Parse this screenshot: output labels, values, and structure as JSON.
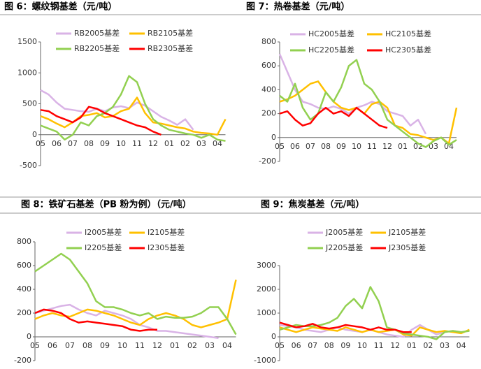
{
  "chart_data": [
    {
      "type": "line",
      "title": "图 6：螺纹钢基差（元/吨）",
      "categories": [
        "05",
        null,
        "06",
        null,
        "07",
        null,
        "08",
        null,
        "09",
        null,
        "10",
        null,
        "11",
        null,
        "12",
        null,
        "01",
        null,
        "02",
        null,
        "03",
        null,
        "04",
        null
      ],
      "ylim": [
        -500,
        1500
      ],
      "yticks": [
        -500,
        0,
        500,
        1000,
        1500
      ],
      "series": [
        {
          "name": "RB2005基差",
          "color": "#d9b3e6",
          "values": [
            720,
            650,
            520,
            420,
            400,
            380,
            370,
            420,
            380,
            440,
            460,
            430,
            520,
            470,
            380,
            290,
            230,
            160,
            250,
            80,
            null,
            null,
            null,
            null
          ]
        },
        {
          "name": "RB2105基差",
          "color": "#ffc000",
          "values": [
            300,
            250,
            180,
            120,
            200,
            300,
            320,
            350,
            280,
            300,
            380,
            420,
            600,
            350,
            200,
            180,
            150,
            120,
            100,
            50,
            30,
            20,
            0,
            250
          ]
        },
        {
          "name": "RB2205基差",
          "color": "#92d050",
          "values": [
            150,
            100,
            50,
            -80,
            0,
            200,
            150,
            300,
            350,
            450,
            650,
            950,
            850,
            500,
            250,
            150,
            80,
            50,
            20,
            0,
            -50,
            0,
            -80,
            -100
          ]
        },
        {
          "name": "RB2305基差",
          "color": "#ff0000",
          "values": [
            400,
            380,
            300,
            250,
            200,
            280,
            450,
            420,
            350,
            300,
            250,
            200,
            150,
            120,
            50,
            0,
            null,
            null,
            null,
            null,
            null,
            null,
            null,
            null
          ]
        }
      ]
    },
    {
      "type": "line",
      "title": "图 7：热卷基差（元/吨）",
      "categories": [
        "05",
        null,
        "06",
        null,
        "07",
        null,
        "08",
        null,
        "09",
        null,
        "10",
        null,
        "11",
        null,
        "12",
        null,
        "01",
        null,
        "02",
        null,
        "03",
        null,
        "04",
        null
      ],
      "ylim": [
        -200,
        800
      ],
      "yticks": [
        -200,
        0,
        200,
        400,
        600,
        800
      ],
      "series": [
        {
          "name": "HC2005基差",
          "color": "#d9b3e6",
          "values": [
            700,
            550,
            400,
            300,
            280,
            250,
            240,
            260,
            240,
            200,
            250,
            270,
            300,
            280,
            220,
            200,
            180,
            100,
            150,
            30,
            null,
            null,
            null,
            null
          ]
        },
        {
          "name": "HC2105基差",
          "color": "#ffc000",
          "values": [
            300,
            320,
            350,
            400,
            450,
            470,
            380,
            300,
            250,
            230,
            250,
            200,
            280,
            300,
            250,
            100,
            80,
            30,
            20,
            0,
            -20,
            0,
            -50,
            250
          ]
        },
        {
          "name": "HC2205基差",
          "color": "#92d050",
          "values": [
            350,
            300,
            450,
            250,
            150,
            200,
            380,
            300,
            420,
            600,
            650,
            450,
            400,
            300,
            150,
            100,
            50,
            0,
            -50,
            -80,
            -30,
            0,
            -60,
            -20
          ]
        },
        {
          "name": "HC2305基差",
          "color": "#ff0000",
          "values": [
            200,
            220,
            150,
            100,
            120,
            200,
            250,
            200,
            220,
            180,
            250,
            200,
            150,
            100,
            80,
            null,
            null,
            null,
            null,
            null,
            null,
            null,
            null,
            null
          ]
        }
      ]
    },
    {
      "type": "line",
      "title": "图 8：铁矿石基差（PB 粉为例）（元/吨）",
      "categories": [
        "05",
        null,
        "06",
        null,
        "07",
        null,
        "08",
        null,
        "09",
        null,
        "10",
        null,
        "11",
        null,
        "12",
        null,
        "01",
        null,
        "02",
        null,
        "03",
        null,
        "04",
        null
      ],
      "ylim": [
        -200,
        800
      ],
      "yticks": [
        -200,
        0,
        200,
        400,
        600,
        800
      ],
      "series": [
        {
          "name": "I2005基差",
          "color": "#d9b3e6",
          "values": [
            200,
            220,
            240,
            260,
            270,
            230,
            200,
            180,
            220,
            200,
            180,
            150,
            100,
            80,
            50,
            50,
            40,
            30,
            20,
            10,
            0,
            -10,
            null,
            null
          ]
        },
        {
          "name": "I2105基差",
          "color": "#ffc000",
          "values": [
            150,
            180,
            200,
            180,
            170,
            200,
            230,
            220,
            200,
            180,
            150,
            120,
            100,
            150,
            180,
            200,
            180,
            150,
            100,
            80,
            100,
            120,
            150,
            480
          ]
        },
        {
          "name": "I2205基差",
          "color": "#92d050",
          "values": [
            550,
            600,
            650,
            700,
            650,
            550,
            450,
            300,
            250,
            250,
            230,
            200,
            180,
            200,
            150,
            170,
            160,
            160,
            170,
            200,
            250,
            250,
            150,
            20
          ]
        },
        {
          "name": "I2305基差",
          "color": "#ff0000",
          "values": [
            200,
            230,
            220,
            200,
            150,
            120,
            130,
            120,
            110,
            100,
            90,
            60,
            50,
            60,
            60,
            null,
            null,
            null,
            null,
            null,
            null,
            null,
            null,
            null
          ]
        }
      ]
    },
    {
      "type": "line",
      "title": "图 9：焦炭基差（元/吨）",
      "categories": [
        "05",
        null,
        "06",
        null,
        "07",
        null,
        "08",
        null,
        "09",
        null,
        "10",
        null,
        "11",
        null,
        "12",
        null,
        "01",
        null,
        "02",
        null,
        "03",
        null,
        "04",
        null
      ],
      "ylim": [
        -1000,
        3000
      ],
      "yticks": [
        -1000,
        0,
        1000,
        2000,
        3000
      ],
      "series": [
        {
          "name": "J2005基差",
          "color": "#d9b3e6",
          "values": [
            500,
            450,
            400,
            300,
            250,
            200,
            300,
            400,
            300,
            250,
            200,
            300,
            200,
            100,
            50,
            0,
            300,
            500,
            300,
            100,
            200,
            250,
            200,
            null
          ]
        },
        {
          "name": "J2105基差",
          "color": "#ffc000",
          "values": [
            400,
            300,
            200,
            300,
            400,
            350,
            300,
            250,
            400,
            300,
            200,
            300,
            200,
            250,
            300,
            100,
            50,
            400,
            300,
            200,
            250,
            200,
            150,
            300
          ]
        },
        {
          "name": "J2205基差",
          "color": "#92d050",
          "values": [
            300,
            400,
            500,
            450,
            450,
            500,
            600,
            800,
            1300,
            1600,
            1200,
            2100,
            1500,
            400,
            300,
            150,
            100,
            50,
            0,
            -100,
            200,
            250,
            200,
            250
          ]
        },
        {
          "name": "J2305基差",
          "color": "#ff0000",
          "values": [
            600,
            500,
            400,
            450,
            550,
            400,
            350,
            400,
            500,
            450,
            400,
            300,
            400,
            300,
            300,
            200,
            200,
            null,
            null,
            null,
            null,
            null,
            null,
            null
          ]
        }
      ]
    }
  ]
}
